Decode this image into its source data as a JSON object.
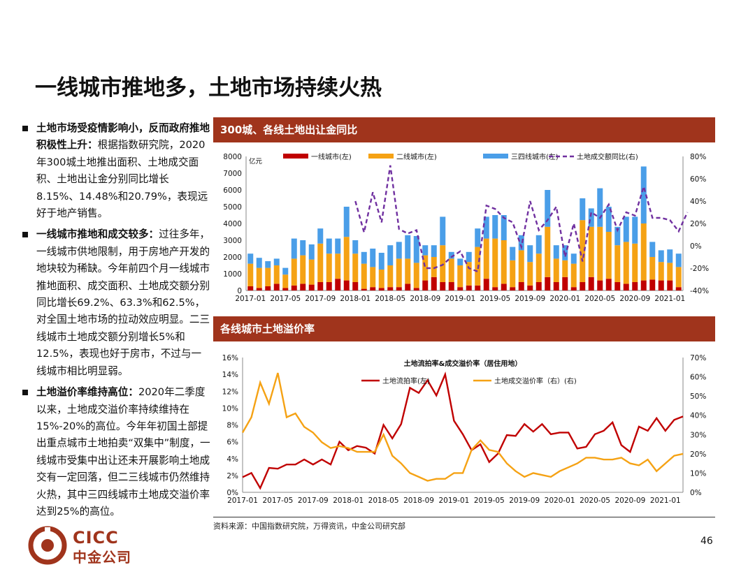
{
  "title": "一线城市推地多，土地市场持续火热",
  "bullets": [
    {
      "head": "土地市场受疫情影响小，反而政府推地积极性上升：",
      "body": "根据指数研究院，2020年300城土地推出面积、土地成交面积、土地出让金分别同比增长8.15%、14.48%和20.79%，表现远好于地产销售。"
    },
    {
      "head": "一线城市推地和成交较多：",
      "body": "过往多年，一线城市供地限制，用于房地产开发的地块较为稀缺。今年前四个月一线城市推地面积、成交面积、土地成交额分别同比增长69.2%、63.3%和62.5%，对全国土地市场的拉动效应明显。二三线城市土地成交额分别增长5%和12.5%，表现也好于房市，不过与一线城市相比明显弱。"
    },
    {
      "head": "土地溢价率维持高位：",
      "body": "2020年二季度以来，土地成交溢价率持续维持在15%-20%的高位。今年年初国土部提出重点城市土地拍卖“双集中”制度，一线城市受集中出让还未开展影响土地成交有一定回落，但二三线城市仍然维持火热，其中三四线城市土地成交溢价率达到25%的高位。"
    }
  ],
  "panel1": {
    "header": "300城、各线土地出让金同比"
  },
  "panel2": {
    "header": "各线城市土地溢价率"
  },
  "source": "资料来源：中国指数研究院，万得资讯，中金公司研究部",
  "page_number": "46",
  "logo": {
    "en": "CICC",
    "cn": "中金公司"
  },
  "colors": {
    "brand": "#a0341c",
    "tier1": "#c00000",
    "tier2": "#f5a214",
    "tier34": "#4a9ee8",
    "yoy": "#7030a0",
    "flow": "#c00000",
    "premium": "#f5a214"
  },
  "chart_data": [
    {
      "type": "bar",
      "stacked": true,
      "ylabel_unit": "亿元",
      "ylim": [
        0,
        8000
      ],
      "y_ticks": [
        "0",
        "1000",
        "2000",
        "3000",
        "4000",
        "5000",
        "6000",
        "7000",
        "8000"
      ],
      "y2lim": [
        -40,
        80
      ],
      "y2_ticks": [
        "-40%",
        "-20%",
        "0%",
        "20%",
        "40%",
        "60%",
        "80%"
      ],
      "x_tick_labels": [
        "2017-01",
        "2017-05",
        "2017-09",
        "2018-01",
        "2018-05",
        "2018-09",
        "2019-01",
        "2019-05",
        "2019-09",
        "2020-01",
        "2020-05",
        "2020-09",
        "2021-01"
      ],
      "legend_placement": "top",
      "series": [
        {
          "name": "一线城市(左)",
          "kind": "bar",
          "values": [
            250,
            150,
            250,
            400,
            150,
            300,
            400,
            350,
            500,
            500,
            700,
            600,
            500,
            100,
            200,
            150,
            200,
            200,
            400,
            150,
            600,
            800,
            500,
            500,
            200,
            300,
            300,
            700,
            200,
            400,
            200,
            500,
            300,
            500,
            800,
            500,
            800,
            200,
            500,
            800,
            600,
            700,
            500,
            400,
            500,
            600,
            650,
            600,
            600,
            200
          ]
        },
        {
          "name": "二线城市(左)",
          "kind": "bar",
          "values": [
            1350,
            1200,
            1100,
            1100,
            800,
            1600,
            1700,
            1500,
            2300,
            1700,
            1500,
            2600,
            1700,
            1500,
            1200,
            1100,
            1300,
            1700,
            1500,
            1500,
            1500,
            1200,
            2200,
            1400,
            1300,
            1400,
            2300,
            2400,
            2900,
            2600,
            1600,
            1900,
            1400,
            1700,
            3000,
            1400,
            1000,
            1400,
            3700,
            3000,
            3200,
            2800,
            2200,
            2500,
            2300,
            3400,
            1350,
            1100,
            1050,
            1200
          ]
        },
        {
          "name": "三四线城市(左)",
          "kind": "bar",
          "values": [
            600,
            600,
            400,
            400,
            400,
            1200,
            900,
            900,
            900,
            900,
            900,
            1800,
            800,
            700,
            1100,
            1000,
            1200,
            1000,
            1400,
            1600,
            600,
            700,
            1700,
            400,
            400,
            600,
            1100,
            1300,
            1400,
            1500,
            800,
            900,
            1000,
            1100,
            2200,
            800,
            900,
            600,
            1300,
            1100,
            2300,
            1500,
            1100,
            1500,
            1600,
            3400,
            900,
            700,
            800,
            800
          ]
        },
        {
          "name": "土地成交额同比(右)",
          "kind": "line",
          "start_index": 12,
          "values": [
            40,
            12,
            48,
            21,
            72,
            15,
            11,
            14,
            -20,
            -20,
            -17,
            -10,
            -5,
            -20,
            -23,
            36,
            33,
            25,
            21,
            -1,
            40,
            14,
            23,
            35,
            -10,
            20,
            -14,
            30,
            25,
            37,
            14,
            30,
            27,
            53,
            25,
            25,
            23,
            13,
            30
          ]
        }
      ]
    },
    {
      "type": "line",
      "title": "土地流拍率&成交溢价率（居住用地）",
      "ylim": [
        0,
        16
      ],
      "y_ticks": [
        "0%",
        "2%",
        "4%",
        "6%",
        "8%",
        "10%",
        "12%",
        "14%",
        "16%"
      ],
      "y2lim": [
        0,
        70
      ],
      "y2_ticks": [
        "0%",
        "10%",
        "20%",
        "30%",
        "40%",
        "50%",
        "60%",
        "70%"
      ],
      "x_tick_labels": [
        "2017-01",
        "2017-05",
        "2017-09",
        "2018-01",
        "2018-05",
        "2018-09",
        "2019-01",
        "2019-05",
        "2019-09",
        "2020-01",
        "2020-05",
        "2020-09",
        "2021-01"
      ],
      "legend_placement": "top",
      "series": [
        {
          "name": "土地流拍率(左)",
          "axis": "left",
          "values": [
            1.8,
            2.3,
            0.5,
            2.9,
            2.8,
            3.3,
            3.3,
            3.9,
            3.3,
            3.9,
            3.3,
            6.0,
            5.0,
            5.5,
            5.3,
            4.6,
            8.0,
            6.4,
            8.1,
            12.4,
            11.8,
            13.3,
            11.5,
            14.0,
            8.5,
            6.9,
            5.0,
            5.7,
            3.6,
            4.6,
            6.8,
            6.7,
            8.1,
            7.2,
            8.1,
            6.9,
            7.1,
            7.1,
            5.2,
            5.4,
            6.9,
            7.3,
            8.3,
            5.6,
            4.8,
            7.8,
            7.3,
            8.8,
            7.3,
            8.6,
            9.0
          ]
        },
        {
          "name": "土地成交溢价率（右）(右)",
          "axis": "right",
          "values": [
            31,
            39,
            57,
            46,
            62,
            39,
            41,
            34,
            31,
            26,
            23,
            24,
            23,
            21,
            21,
            21,
            30,
            19,
            15,
            10,
            8,
            6,
            7,
            7,
            10,
            10,
            22,
            27,
            22,
            21,
            15,
            11,
            8,
            10,
            9,
            8,
            11,
            13,
            15,
            18,
            18,
            17,
            17,
            18,
            15,
            14,
            17,
            11,
            15,
            19,
            20
          ]
        }
      ]
    }
  ]
}
